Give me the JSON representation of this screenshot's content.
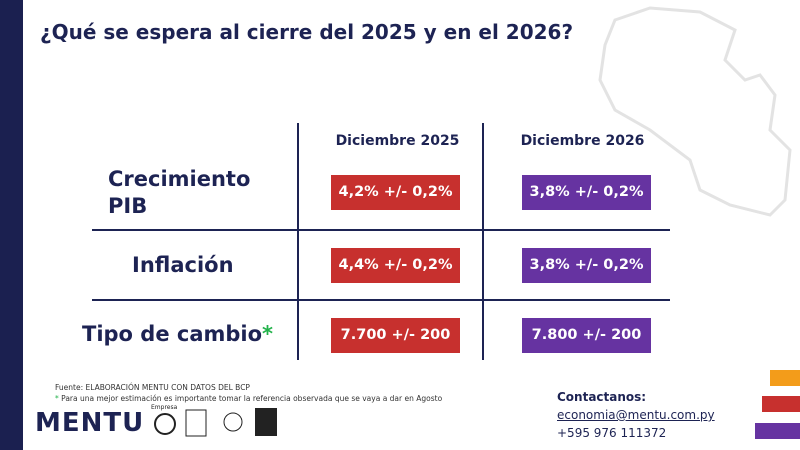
{
  "title": "¿Qué se espera al cierre del 2025 y en el 2026?",
  "table": {
    "columns": [
      "Diciembre 2025",
      "Diciembre 2026"
    ],
    "rows": [
      {
        "label": "Crecimiento PIB",
        "cells": [
          "4,2% +/- 0,2%",
          "3,8% +/- 0,2%"
        ]
      },
      {
        "label": "Inflación",
        "cells": [
          "4,4% +/- 0,2%",
          "3,8% +/- 0,2%"
        ]
      },
      {
        "label": "Tipo de cambio",
        "mark": "*",
        "cells": [
          "7.700 +/- 200",
          "7.800 +/- 200"
        ]
      }
    ]
  },
  "footnotes": {
    "source": "Fuente: ELABORACIÓN MENTU CON DATOS DEL BCP",
    "mark": "*",
    "note": "Para una mejor estimación es importante tomar la referencia observada que se vaya a dar en Agosto"
  },
  "logo": {
    "name": "MENTU",
    "badge": "Empresa"
  },
  "contact": {
    "heading": "Contactanos:",
    "email": "economia@mentu.com.py",
    "phone": "+595 976 111372"
  }
}
